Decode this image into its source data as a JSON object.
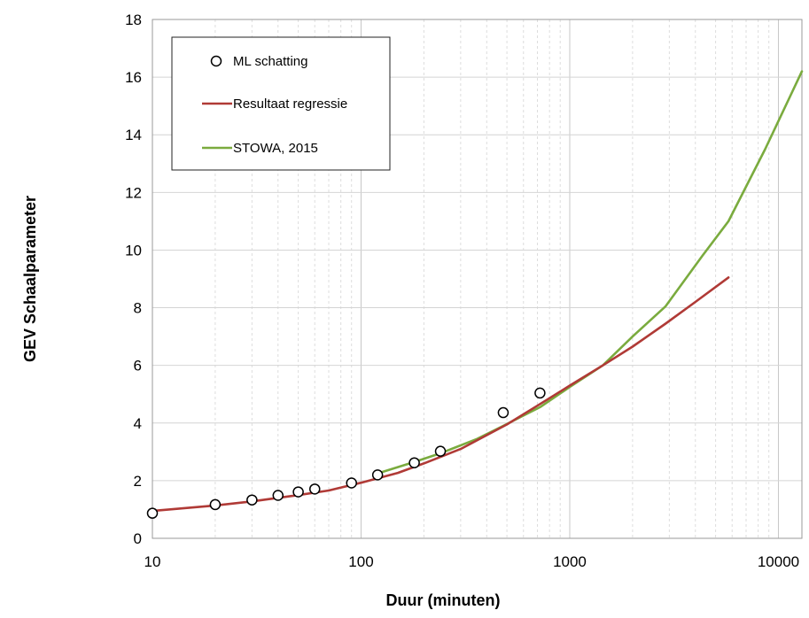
{
  "chart_data": {
    "type": "line",
    "title": "",
    "xlabel": "Duur (minuten)",
    "ylabel": "GEV Schaalparameter",
    "xscale": "log",
    "xlim": [
      10,
      12960
    ],
    "ylim": [
      0,
      18
    ],
    "xticks": [
      10,
      100,
      1000,
      10000
    ],
    "xtick_labels": [
      "10",
      "100",
      "1000",
      "10000"
    ],
    "yticks": [
      0,
      2,
      4,
      6,
      8,
      10,
      12,
      14,
      16,
      18
    ],
    "ytick_labels": [
      "0",
      "2",
      "4",
      "6",
      "8",
      "10",
      "12",
      "14",
      "16",
      "18"
    ],
    "grid": true,
    "legend_position": "top-left",
    "series": [
      {
        "name": "ML schatting",
        "kind": "scatter",
        "marker": "open-circle",
        "color": "#000000",
        "x": [
          10,
          20,
          30,
          40,
          50,
          60,
          90,
          120,
          180,
          240,
          480,
          720
        ],
        "y": [
          0.87,
          1.17,
          1.33,
          1.49,
          1.61,
          1.71,
          1.92,
          2.2,
          2.62,
          3.02,
          4.36,
          5.04
        ]
      },
      {
        "name": "Resultaat regressie",
        "kind": "line",
        "color": "#b03a36",
        "x": [
          10,
          20,
          30,
          50,
          70,
          100,
          150,
          200,
          300,
          500,
          700,
          1000,
          1440,
          2000,
          2880,
          4000,
          5760
        ],
        "y": [
          0.95,
          1.14,
          1.28,
          1.5,
          1.66,
          1.93,
          2.27,
          2.6,
          3.1,
          3.95,
          4.6,
          5.3,
          6.0,
          6.65,
          7.45,
          8.2,
          9.05
        ]
      },
      {
        "name": "STOWA, 2015",
        "kind": "line",
        "color": "#7aab3e",
        "x": [
          120,
          180,
          240,
          360,
          480,
          720,
          1000,
          1440,
          2000,
          2880,
          4320,
          5760,
          8640,
          12960
        ],
        "y": [
          2.25,
          2.65,
          2.95,
          3.45,
          3.9,
          4.55,
          5.25,
          6.0,
          7.0,
          8.05,
          9.8,
          11.0,
          13.5,
          16.2
        ]
      }
    ]
  }
}
